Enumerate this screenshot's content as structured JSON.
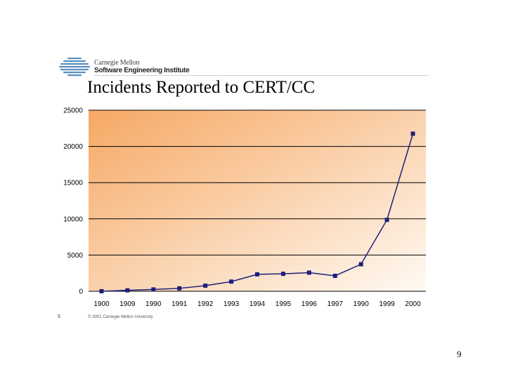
{
  "header": {
    "logo_line1": "Carnegie Mellon",
    "logo_line2": "Software Engineering Institute",
    "logo_icon": "striped-globe-icon"
  },
  "slide_title": "Incidents Reported to CERT/CC",
  "footer": {
    "slide_number": "5",
    "copyright": "© 2001 Carnegie Mellon University",
    "page_number": "9"
  },
  "colors": {
    "line": "#1f1f7a",
    "marker": "#1f1f7a",
    "gradient_start": "#f6a864",
    "gradient_end": "#fffaf3",
    "grid": "#000000"
  },
  "chart_data": {
    "type": "line",
    "title": "Incidents Reported to CERT/CC",
    "xlabel": "",
    "ylabel": "",
    "categories": [
      "1900",
      "1909",
      "1990",
      "1991",
      "1992",
      "1993",
      "1994",
      "1995",
      "1996",
      "1997",
      "1990",
      "1999",
      "2000"
    ],
    "series": [
      {
        "name": "Incidents",
        "values": [
          6,
          132,
          252,
          406,
          773,
          1334,
          2340,
          2412,
          2573,
          2134,
          3734,
          9859,
          21756
        ]
      }
    ],
    "yticks": [
      "25000",
      "20000",
      "15000",
      "10000",
      "5000",
      "0"
    ],
    "ylim": [
      0,
      25000
    ],
    "grid": true,
    "legend": "none"
  }
}
